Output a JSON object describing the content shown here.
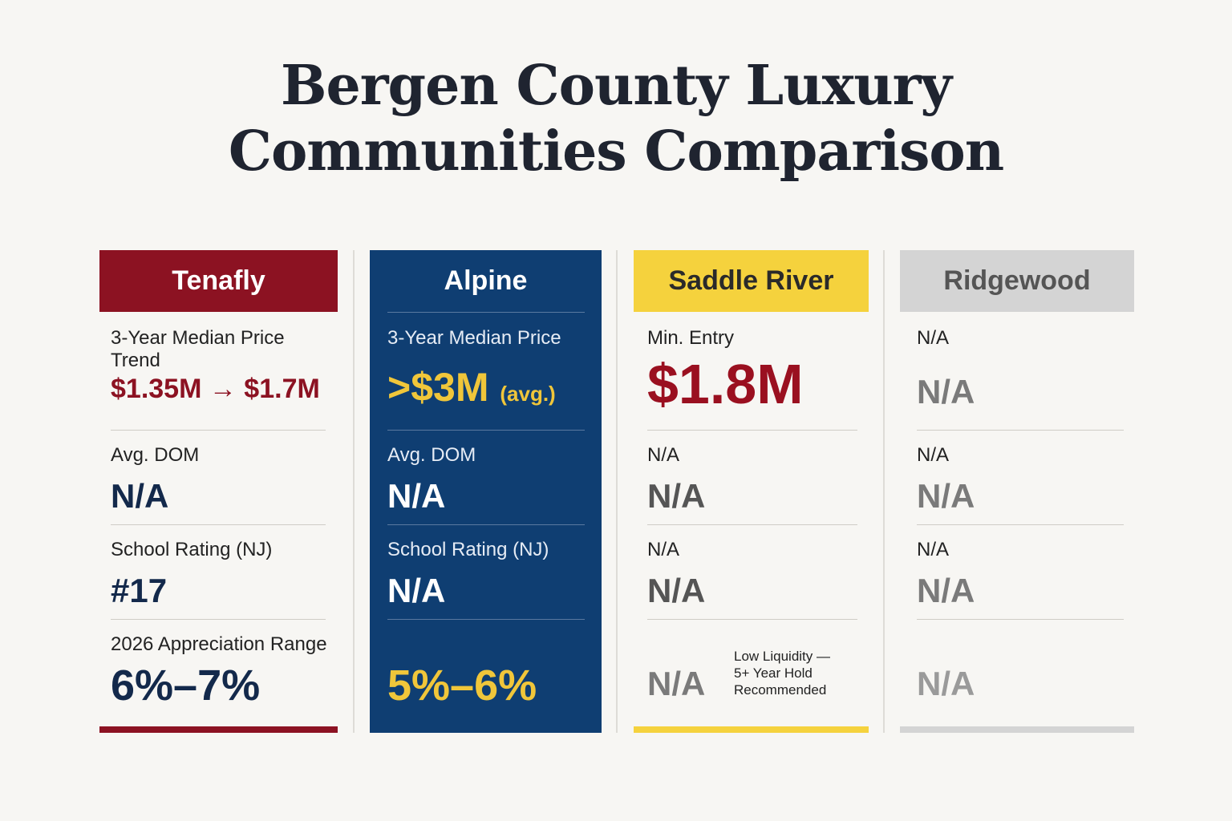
{
  "title": {
    "line1": "Bergen County Luxury",
    "line2": "Communities Comparison"
  },
  "colors": {
    "tenafly": "#8c1222",
    "alpine": "#0f3e72",
    "saddle_river": "#f5d23d",
    "ridgewood": "#d4d4d4",
    "navy_text": "#13294b",
    "gold_text": "#f0c63a"
  },
  "columns": {
    "tenafly": {
      "name": "Tenafly",
      "rows": [
        {
          "label": "3-Year Median Price Trend",
          "value": "$1.35M → $1.7M"
        },
        {
          "label": "Avg. DOM",
          "value": "N/A"
        },
        {
          "label": "School Rating (NJ)",
          "value": "#17"
        },
        {
          "label": "2026 Appreciation Range",
          "value": "6%–7%"
        }
      ]
    },
    "alpine": {
      "name": "Alpine",
      "rows": [
        {
          "label": "3-Year Median Price",
          "value": ">$3M",
          "suffix": "(avg.)"
        },
        {
          "label": "Avg. DOM",
          "value": "N/A"
        },
        {
          "label": "School Rating (NJ)",
          "value": "N/A"
        },
        {
          "label": "",
          "value": "5%–6%"
        }
      ]
    },
    "saddle_river": {
      "name": "Saddle River",
      "rows": [
        {
          "label": "Min. Entry",
          "value": "$1.8M"
        },
        {
          "label": "N/A",
          "value": "N/A"
        },
        {
          "label": "N/A",
          "value": "N/A"
        },
        {
          "label": "",
          "value": "N/A",
          "note": "Low Liquidity — 5+ Year Hold Recommended"
        }
      ]
    },
    "ridgewood": {
      "name": "Ridgewood",
      "rows": [
        {
          "label": "N/A",
          "value": "N/A"
        },
        {
          "label": "N/A",
          "value": "N/A"
        },
        {
          "label": "N/A",
          "value": "N/A"
        },
        {
          "label": "",
          "value": "N/A"
        }
      ]
    }
  }
}
